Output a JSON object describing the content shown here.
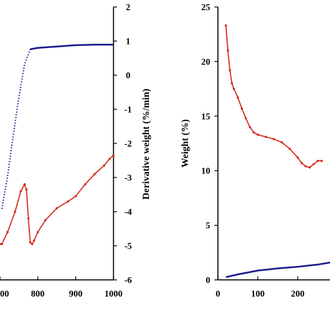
{
  "chart_data": [
    {
      "type": "scatter",
      "title": "",
      "xlabel": "",
      "ylabel": "",
      "y2label": "Derivative weight (%/min)",
      "xlim": [
        700,
        1000
      ],
      "y2lim": [
        -6,
        2
      ],
      "xticks": [
        "00",
        "800",
        "900",
        "1000"
      ],
      "y2ticks": [
        "2",
        "1",
        "0",
        "-1",
        "-2",
        "-3",
        "-4",
        "-5",
        "-6"
      ],
      "series": [
        {
          "color": "#1c1c8c",
          "axis": "left",
          "style": "dotted-then-line",
          "x": [
            705,
            720,
            735,
            750,
            765,
            780,
            800,
            850,
            900,
            950,
            1000
          ],
          "y_rel": [
            0.26,
            0.38,
            0.53,
            0.67,
            0.79,
            0.845,
            0.85,
            0.855,
            0.86,
            0.862,
            0.862
          ]
        },
        {
          "color": "#d42a1c",
          "axis": "right",
          "x": [
            700,
            705,
            720,
            740,
            755,
            765,
            770,
            775,
            780,
            785,
            790,
            800,
            820,
            850,
            880,
            900,
            925,
            950,
            975,
            990,
            1000
          ],
          "y": [
            -4.95,
            -4.95,
            -4.6,
            -4.0,
            -3.4,
            -3.2,
            -3.35,
            -4.2,
            -4.9,
            -4.95,
            -4.85,
            -4.6,
            -4.25,
            -3.9,
            -3.7,
            -3.55,
            -3.2,
            -2.9,
            -2.65,
            -2.45,
            -2.35
          ]
        }
      ]
    },
    {
      "type": "line",
      "title": "",
      "xlabel": "",
      "ylabel": "Weight (%)",
      "xlim": [
        0,
        300
      ],
      "ylim": [
        0,
        25
      ],
      "xticks": [
        "0",
        "100",
        "200"
      ],
      "yticks": [
        "25",
        "20",
        "15",
        "10",
        "5",
        "0"
      ],
      "series": [
        {
          "color": "#d42a1c",
          "x": [
            20,
            25,
            30,
            35,
            40,
            50,
            60,
            70,
            80,
            90,
            100,
            120,
            140,
            160,
            180,
            200,
            210,
            220,
            230,
            240,
            250,
            260
          ],
          "y": [
            23.3,
            21.0,
            19.2,
            18.0,
            17.5,
            16.7,
            15.7,
            14.8,
            14.0,
            13.5,
            13.3,
            13.1,
            12.9,
            12.6,
            12.0,
            11.2,
            10.7,
            10.4,
            10.3,
            10.6,
            10.9,
            10.9
          ]
        },
        {
          "color": "#1c1c8c",
          "x": [
            20,
            50,
            100,
            150,
            200,
            250,
            300
          ],
          "y": [
            0.25,
            0.5,
            0.85,
            1.05,
            1.2,
            1.4,
            1.7
          ]
        }
      ]
    }
  ]
}
